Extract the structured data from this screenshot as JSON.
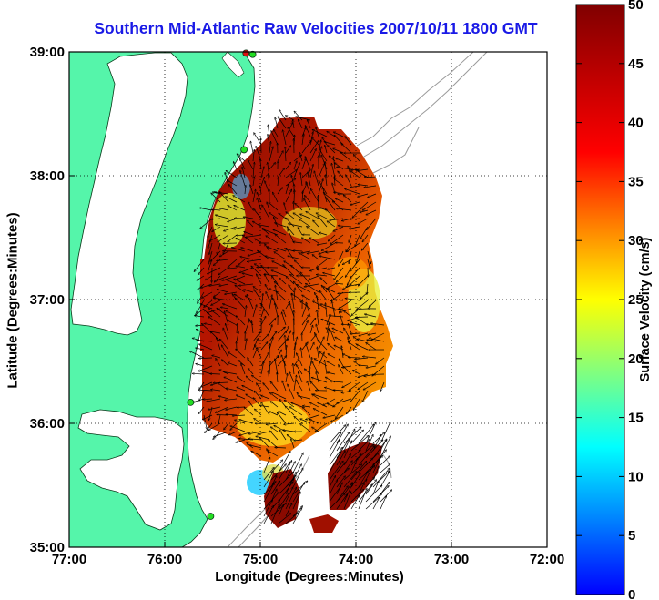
{
  "chart_data": {
    "type": "map",
    "title": "Southern Mid-Atlantic Raw Velocities 2007/10/11 1800 GMT",
    "xlabel": "Longitude (Degrees:Minutes)",
    "ylabel": "Latitude (Degrees:Minutes)",
    "colorbar_label": "Surface Velocity (cm/s)",
    "colorbar_range": [
      0,
      50
    ],
    "colorbar_ticks": [
      "0",
      "5",
      "10",
      "15",
      "20",
      "25",
      "30",
      "35",
      "40",
      "45",
      "50"
    ],
    "xlim": [
      -77,
      -72
    ],
    "ylim": [
      35,
      39
    ],
    "x_ticks": [
      {
        "value": -77,
        "label": "77:00"
      },
      {
        "value": -76,
        "label": "76:00"
      },
      {
        "value": -75,
        "label": "75:00"
      },
      {
        "value": -74,
        "label": "74:00"
      },
      {
        "value": -73,
        "label": "73:00"
      },
      {
        "value": -72,
        "label": "72:00"
      }
    ],
    "y_ticks": [
      {
        "value": 35,
        "label": "35:00"
      },
      {
        "value": 36,
        "label": "36:00"
      },
      {
        "value": 37,
        "label": "37:00"
      },
      {
        "value": 38,
        "label": "38:00"
      },
      {
        "value": 39,
        "label": "39:00"
      }
    ],
    "grid": true,
    "grid_style": "dotted",
    "colormap": "jet",
    "land_color": "#55f5aa",
    "water_color": "#ffffff",
    "station_markers": [
      {
        "lon": -75.15,
        "lat": 38.99,
        "color": "#e01010"
      },
      {
        "lon": -75.08,
        "lat": 38.98,
        "color": "#22dd22"
      },
      {
        "lon": -75.17,
        "lat": 38.21,
        "color": "#22dd22"
      },
      {
        "lon": -75.73,
        "lat": 36.17,
        "color": "#22dd22"
      },
      {
        "lon": -75.52,
        "lat": 35.25,
        "color": "#22dd22"
      }
    ]
  }
}
